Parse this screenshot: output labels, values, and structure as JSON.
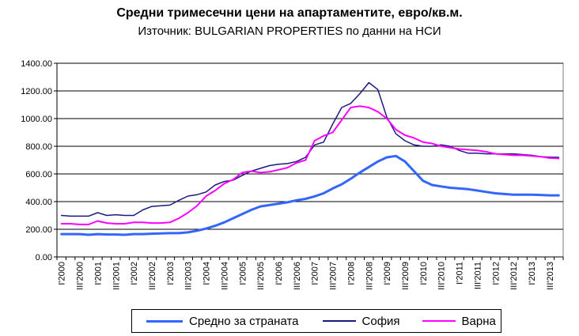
{
  "chart_data": {
    "type": "line",
    "title": "Средни тримесечни цени на апартаментите, евро/кв.м.",
    "subtitle": "Източник: BULGARIAN PROPERTIES по данни на НСИ",
    "xlabel": "",
    "ylabel": "",
    "ylim": [
      0,
      1400
    ],
    "yticks": [
      "0.00",
      "200.00",
      "400.00",
      "600.00",
      "800.00",
      "1000.00",
      "1200.00",
      "1400.00"
    ],
    "grid": true,
    "legend_position": "bottom",
    "categories": [
      "I'2000",
      "II'2000",
      "III'2000",
      "IV'2000",
      "I'2001",
      "II'2001",
      "III'2001",
      "IV'2001",
      "I'2002",
      "II'2002",
      "III'2002",
      "IV'2002",
      "I'2003",
      "II'2003",
      "III'2003",
      "IV'2003",
      "I'2004",
      "II'2004",
      "III'2004",
      "IV'2004",
      "I'2005",
      "II'2005",
      "III'2005",
      "IV'2005",
      "I'2006",
      "II'2006",
      "III'2006",
      "IV'2006",
      "I'2007",
      "II'2007",
      "III'2007",
      "IV'2007",
      "I'2008",
      "II'2008",
      "III'2008",
      "IV'2008",
      "I'2009",
      "II'2009",
      "III'2009",
      "IV'2009",
      "I'2010",
      "II'2010",
      "III'2010",
      "IV'2010",
      "I'2011",
      "II'2011",
      "III'2011",
      "IV'2011",
      "I'2012",
      "II'2012",
      "III'2012",
      "IV'2012",
      "I'2013",
      "II'2013",
      "III'2013",
      "IV'2013"
    ],
    "tick_labels": [
      "I'2000",
      "III'2000",
      "I'2001",
      "III'2001",
      "I'2002",
      "III'2002",
      "I'2003",
      "III'2003",
      "I'2004",
      "III'2004",
      "I'2005",
      "III'2005",
      "I'2006",
      "III'2006",
      "I'2007",
      "III'2007",
      "I'2008",
      "III'2008",
      "I'2009",
      "III'2009",
      "I'2010",
      "III'2010",
      "I'2011",
      "III'2011",
      "I'2012",
      "III'2012",
      "I'2013",
      "III'2013"
    ],
    "series": [
      {
        "name": "Средно за страната",
        "color": "#3366ff",
        "width": 3,
        "values": [
          165,
          165,
          165,
          160,
          165,
          162,
          162,
          160,
          165,
          165,
          168,
          170,
          172,
          172,
          178,
          190,
          205,
          225,
          250,
          280,
          310,
          340,
          365,
          375,
          385,
          395,
          410,
          420,
          438,
          460,
          495,
          525,
          565,
          610,
          650,
          690,
          720,
          730,
          690,
          620,
          550,
          520,
          510,
          500,
          495,
          490,
          480,
          470,
          460,
          455,
          450,
          450,
          450,
          448,
          445,
          445
        ]
      },
      {
        "name": "София",
        "color": "#1a1a80",
        "width": 1.5,
        "values": [
          300,
          295,
          295,
          295,
          320,
          300,
          305,
          300,
          300,
          340,
          365,
          370,
          375,
          410,
          440,
          450,
          470,
          520,
          545,
          555,
          590,
          620,
          640,
          660,
          670,
          675,
          690,
          720,
          810,
          830,
          960,
          1080,
          1110,
          1180,
          1260,
          1210,
          1010,
          890,
          840,
          810,
          800,
          800,
          810,
          800,
          770,
          750,
          750,
          745,
          745,
          745,
          745,
          740,
          735,
          725,
          722,
          720
        ]
      },
      {
        "name": "Варна",
        "color": "#ff00ff",
        "width": 2,
        "values": [
          240,
          240,
          235,
          235,
          260,
          245,
          240,
          240,
          250,
          250,
          245,
          245,
          250,
          280,
          320,
          370,
          440,
          480,
          530,
          560,
          610,
          620,
          610,
          615,
          630,
          645,
          680,
          700,
          840,
          875,
          900,
          990,
          1080,
          1090,
          1080,
          1050,
          1000,
          920,
          880,
          860,
          830,
          820,
          800,
          790,
          780,
          775,
          770,
          760,
          745,
          740,
          735,
          735,
          730,
          725,
          715,
          712
        ]
      }
    ]
  }
}
